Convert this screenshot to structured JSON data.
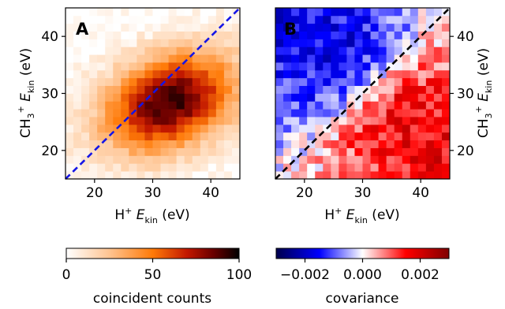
{
  "chart_data": [
    {
      "type": "heatmap",
      "panel_label": "A",
      "xlabel": "H⁺ E_kin (eV)",
      "ylabel": "CH₃⁺ E_kin (eV)",
      "xlim": [
        15,
        45
      ],
      "ylim": [
        15,
        45
      ],
      "x_ticks": [
        20,
        30,
        40
      ],
      "y_ticks": [
        20,
        30,
        40
      ],
      "colormap": "gist_heat_r",
      "diagonal_line": {
        "color": "#1515e6",
        "style": "dashed"
      },
      "grid_bins": 22,
      "peak": {
        "x": 33,
        "y": 28.5,
        "value": 100
      },
      "colorbar": {
        "label": "coincident counts",
        "ticks": [
          0,
          50,
          100
        ],
        "range": [
          0,
          100
        ]
      }
    },
    {
      "type": "heatmap",
      "panel_label": "B",
      "xlabel": "H⁺ E_kin (eV)",
      "ylabel": "CH₃⁺ E_kin (eV)",
      "xlim": [
        15,
        45
      ],
      "ylim": [
        15,
        45
      ],
      "x_ticks": [
        20,
        30,
        40
      ],
      "y_ticks": [
        20,
        30,
        40
      ],
      "colormap": "seismic",
      "diagonal_line": {
        "color": "#000000",
        "style": "dashed"
      },
      "grid_bins": 22,
      "pattern": "positive below diagonal (x>y), negative above diagonal",
      "colorbar": {
        "label": "covariance",
        "ticks": [
          -0.002,
          0.0,
          0.002
        ],
        "tick_labels": [
          "−0.002",
          "0.000",
          "0.002"
        ],
        "range": [
          -0.003,
          0.003
        ]
      }
    }
  ]
}
